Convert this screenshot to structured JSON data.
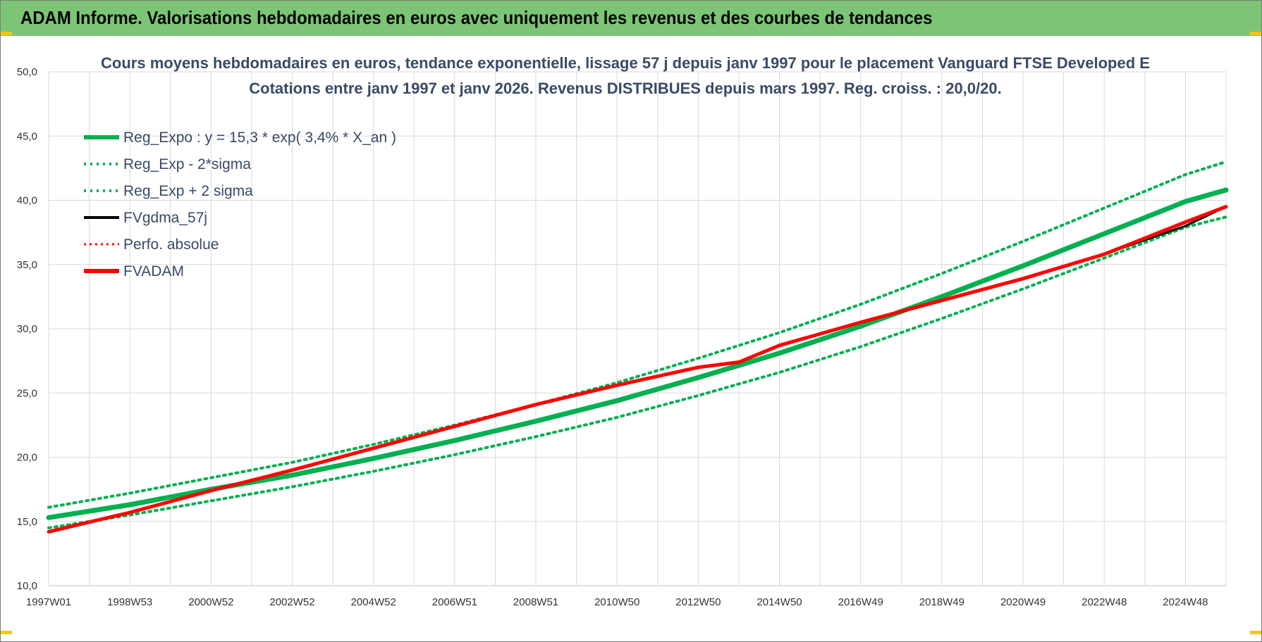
{
  "banner": {
    "title": "ADAM Informe. Valorisations hebdomadaires en euros avec uniquement les revenus et des courbes de tendances"
  },
  "colors": {
    "banner": "#7cc576",
    "trend": "#00b050",
    "fvgdma": "#000000",
    "fvadam": "#ff0000",
    "perfo": "#ff0000",
    "grid": "#d9d9d9",
    "title": "#3a4a66"
  },
  "chart_data": {
    "type": "line",
    "title": "Cours moyens hebdomadaires en euros, tendance exponentielle, lissage 57 j depuis janv 1997  pour le placement Vanguard FTSE Developed E",
    "subtitle": "Cotations entre janv 1997 et janv 2026. Revenus DISTRIBUES depuis mars 1997. Reg. croiss. : 20,0/20.",
    "ylim": [
      10,
      50
    ],
    "yticks": [
      "10,0",
      "15,0",
      "20,0",
      "25,0",
      "30,0",
      "35,0",
      "40,0",
      "45,0",
      "50,0"
    ],
    "xlim": [
      1997.0,
      2026.0
    ],
    "xticks": [
      "1997W01",
      "1998W53",
      "2000W52",
      "2002W52",
      "2004W52",
      "2006W51",
      "2008W51",
      "2010W50",
      "2012W50",
      "2014W50",
      "2016W49",
      "2018W49",
      "2020W49",
      "2022W48",
      "2024W48"
    ],
    "grid": true,
    "legend_position": "top-left",
    "legend": [
      {
        "label": "Reg_Expo : y = 15,3 * exp( 3,4% *  X_an )",
        "style": "solid-thick",
        "color": "#00b050"
      },
      {
        "label": "Reg_Exp - 2*sigma",
        "style": "dotted",
        "color": "#00b050"
      },
      {
        "label": "Reg_Exp + 2 sigma",
        "style": "dotted",
        "color": "#00b050"
      },
      {
        "label": "FVgdma_57j",
        "style": "solid",
        "color": "#000000"
      },
      {
        "label": "Perfo. absolue",
        "style": "dotted",
        "color": "#ff0000"
      },
      {
        "label": "FVADAM",
        "style": "solid-thick",
        "color": "#ff0000"
      }
    ],
    "series": [
      {
        "name": "Reg_Expo : y = 15,3 * exp( 3,4% *  X_an )",
        "x": [
          1997,
          1999,
          2001,
          2003,
          2005,
          2007,
          2009,
          2011,
          2013,
          2015,
          2017,
          2019,
          2021,
          2023,
          2025,
          2026
        ],
        "y": [
          15.3,
          16.3,
          17.5,
          18.6,
          19.9,
          21.3,
          22.8,
          24.4,
          26.2,
          28.1,
          30.2,
          32.5,
          34.9,
          37.4,
          39.9,
          40.8
        ]
      },
      {
        "name": "Reg_Exp - 2*sigma",
        "x": [
          1997,
          1999,
          2001,
          2003,
          2005,
          2007,
          2009,
          2011,
          2013,
          2015,
          2017,
          2019,
          2021,
          2023,
          2025,
          2026
        ],
        "y": [
          14.5,
          15.5,
          16.6,
          17.7,
          18.9,
          20.2,
          21.6,
          23.1,
          24.8,
          26.6,
          28.6,
          30.8,
          33.1,
          35.5,
          37.9,
          38.7
        ]
      },
      {
        "name": "Reg_Exp + 2 sigma",
        "x": [
          1997,
          1999,
          2001,
          2003,
          2005,
          2007,
          2009,
          2011,
          2013,
          2015,
          2017,
          2019,
          2021,
          2023,
          2025,
          2026
        ],
        "y": [
          16.1,
          17.2,
          18.4,
          19.6,
          21.0,
          22.5,
          24.1,
          25.8,
          27.7,
          29.7,
          31.9,
          34.3,
          36.8,
          39.4,
          42.0,
          43.0
        ]
      },
      {
        "name": "FVgdma_57j",
        "x": [
          1997,
          1999,
          2001,
          2003,
          2005,
          2007,
          2009,
          2011,
          2013,
          2014,
          2015,
          2017,
          2019,
          2021,
          2023,
          2025,
          2026
        ],
        "y": [
          14.2,
          15.7,
          17.4,
          19.0,
          20.7,
          22.4,
          24.1,
          25.6,
          27.0,
          27.4,
          28.7,
          30.5,
          32.2,
          33.9,
          35.8,
          38.0,
          39.5
        ]
      },
      {
        "name": "FVADAM",
        "x": [
          1997,
          1999,
          2001,
          2003,
          2005,
          2007,
          2009,
          2011,
          2013,
          2014,
          2015,
          2017,
          2019,
          2021,
          2023,
          2025,
          2026
        ],
        "y": [
          14.2,
          15.7,
          17.4,
          19.0,
          20.7,
          22.4,
          24.1,
          25.6,
          27.0,
          27.4,
          28.7,
          30.5,
          32.2,
          33.9,
          35.8,
          38.3,
          39.5
        ]
      }
    ]
  }
}
